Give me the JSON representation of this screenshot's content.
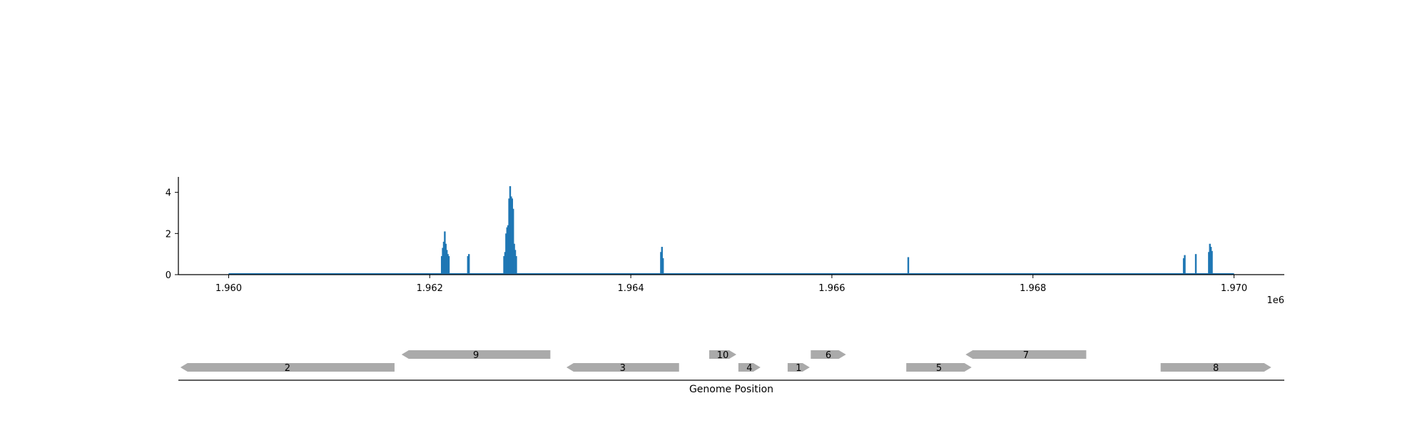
{
  "chart_data": [
    {
      "type": "bar",
      "title": "",
      "xlabel": "",
      "ylabel": "",
      "xlim": [
        1959500,
        1970500
      ],
      "ylim": [
        0,
        4.75
      ],
      "x_offset_label": "1e6",
      "x_ticks": [
        1960000,
        1962000,
        1964000,
        1966000,
        1968000,
        1970000
      ],
      "x_tick_labels": [
        "1.960",
        "1.962",
        "1.964",
        "1.966",
        "1.968",
        "1.970"
      ],
      "y_ticks": [
        0,
        2,
        4
      ],
      "y_tick_labels": [
        "0",
        "2",
        "4"
      ],
      "baseline_range": [
        1960000,
        1970000
      ],
      "color": "#1f77b4",
      "grid": false,
      "series": [
        {
          "x": [
            1962120,
            1962130,
            1962140,
            1962150,
            1962160,
            1962170,
            1962180,
            1962190,
            1962380,
            1962390,
            1962740,
            1962750,
            1962760,
            1962770,
            1962780,
            1962790,
            1962800,
            1962810,
            1962820,
            1962830,
            1962840,
            1962850,
            1962860,
            1964300,
            1964310,
            1964320,
            1966760,
            1969500,
            1969510,
            1969620,
            1969750,
            1969760,
            1969770,
            1969780
          ],
          "values": [
            0.9,
            1.3,
            1.6,
            2.1,
            1.5,
            1.2,
            1.0,
            0.9,
            0.9,
            1.0,
            0.9,
            1.1,
            2.0,
            2.3,
            2.4,
            3.7,
            4.3,
            3.8,
            3.7,
            3.2,
            1.5,
            1.2,
            0.9,
            1.1,
            1.35,
            0.8,
            0.85,
            0.8,
            0.95,
            1.0,
            1.1,
            1.5,
            1.35,
            1.15
          ]
        }
      ]
    },
    {
      "type": "gene_track",
      "xlabel": "Genome Position",
      "color": "#aaaaaa",
      "features": [
        {
          "label": "2",
          "start": 1959520,
          "end": 1961650,
          "strand": "-",
          "row": 0
        },
        {
          "label": "9",
          "start": 1961720,
          "end": 1963200,
          "strand": "-",
          "row": 1
        },
        {
          "label": "3",
          "start": 1963360,
          "end": 1964480,
          "strand": "-",
          "row": 0
        },
        {
          "label": "10",
          "start": 1964780,
          "end": 1965050,
          "strand": "+",
          "row": 1
        },
        {
          "label": "4",
          "start": 1965070,
          "end": 1965290,
          "strand": "+",
          "row": 0
        },
        {
          "label": "1",
          "start": 1965560,
          "end": 1965780,
          "strand": "+",
          "row": 0
        },
        {
          "label": "6",
          "start": 1965790,
          "end": 1966140,
          "strand": "+",
          "row": 1
        },
        {
          "label": "5",
          "start": 1966740,
          "end": 1967390,
          "strand": "+",
          "row": 0
        },
        {
          "label": "7",
          "start": 1967330,
          "end": 1968530,
          "strand": "-",
          "row": 1
        },
        {
          "label": "8",
          "start": 1969270,
          "end": 1970370,
          "strand": "+",
          "row": 0
        }
      ]
    }
  ]
}
